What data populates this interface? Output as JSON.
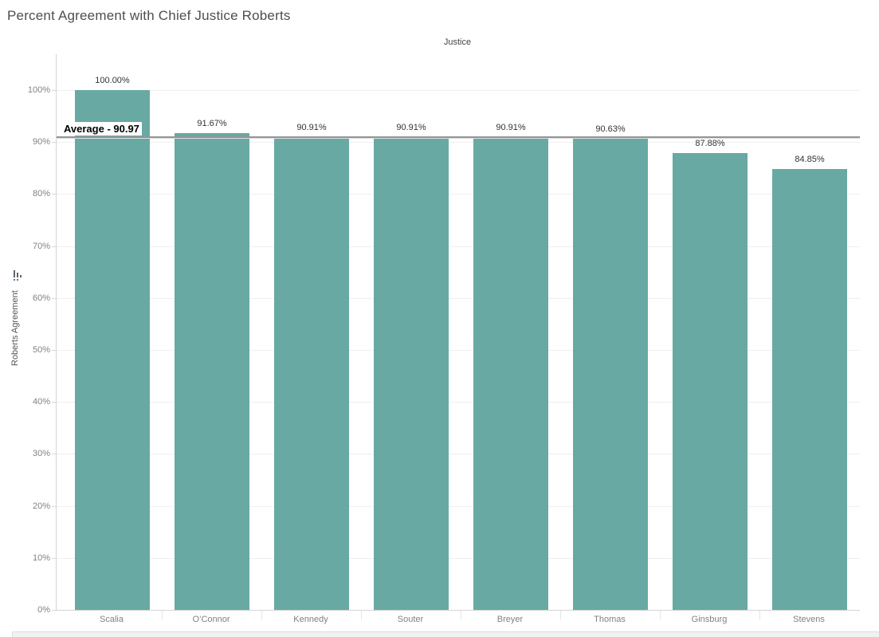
{
  "title": "Percent Agreement with Chief Justice Roberts",
  "column_header": "Justice",
  "y_axis_title": "Roberts Agreement",
  "colors": {
    "bar": "#69a9a4",
    "reference_line": "#949494",
    "gridline": "#efefef",
    "axis_line": "#d4d4d4",
    "tick_label": "#828282",
    "value_label": "#333333",
    "title_text": "#4e4e4e"
  },
  "chart_data": {
    "type": "bar",
    "title": "Percent Agreement with Chief Justice Roberts",
    "xlabel": "Justice",
    "ylabel": "Roberts Agreement",
    "categories": [
      "Scalia",
      "O’Connor",
      "Kennedy",
      "Souter",
      "Breyer",
      "Thomas",
      "Ginsburg",
      "Stevens"
    ],
    "values": [
      100.0,
      91.67,
      90.91,
      90.91,
      90.91,
      90.63,
      87.88,
      84.85
    ],
    "value_labels": [
      "100.00%",
      "91.67%",
      "90.91%",
      "90.91%",
      "90.91%",
      "90.63%",
      "87.88%",
      "84.85%"
    ],
    "ylim": [
      0,
      100
    ],
    "y_tick_values": [
      0,
      10,
      20,
      30,
      40,
      50,
      60,
      70,
      80,
      90,
      100
    ],
    "y_tick_labels": [
      "0%",
      "10%",
      "20%",
      "30%",
      "40%",
      "50%",
      "60%",
      "70%",
      "80%",
      "90%",
      "100%"
    ],
    "grid": true,
    "legend": "none",
    "sort_order": "descending",
    "reference_line": {
      "value": 90.97,
      "label": "Average - 90.97"
    }
  }
}
